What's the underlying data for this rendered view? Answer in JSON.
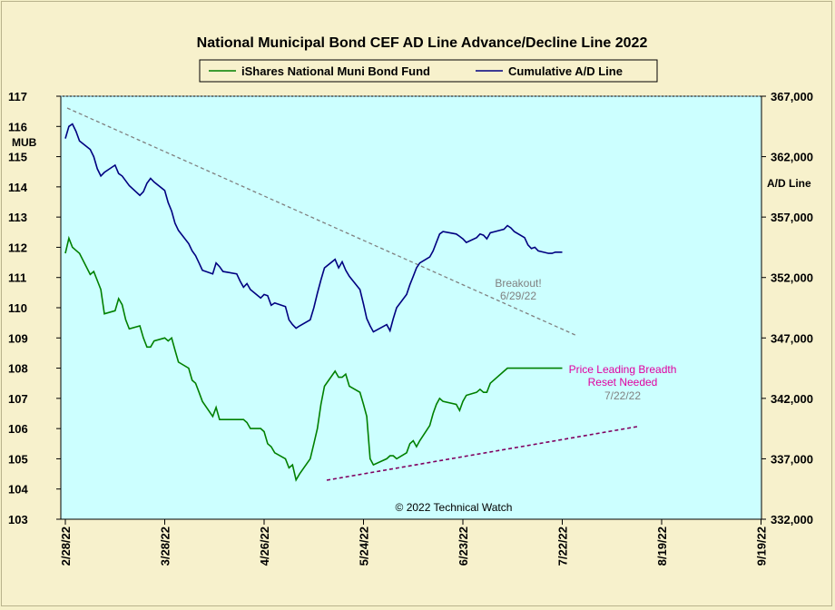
{
  "chart_data": {
    "type": "line",
    "title": "National Municipal Bond CEF AD Line Advance/Decline Line 2022",
    "left_axis": {
      "label": "MUB",
      "ylim": [
        103,
        117
      ],
      "ticks": [
        "103",
        "104",
        "105",
        "106",
        "107",
        "108",
        "109",
        "110",
        "111",
        "112",
        "113",
        "114",
        "115",
        "116",
        "117"
      ]
    },
    "right_axis": {
      "label": "A/D Line",
      "ylim": [
        332000,
        367000
      ],
      "ticks": [
        "332,000",
        "337,000",
        "342,000",
        "347,000",
        "352,000",
        "357,000",
        "362,000",
        "367,000"
      ]
    },
    "x_axis": {
      "ticks": [
        "2/28/22",
        "3/28/22",
        "4/26/22",
        "5/24/22",
        "6/23/22",
        "7/22/22",
        "8/19/22",
        "9/19/22"
      ]
    },
    "legend": {
      "placement": "top-center"
    },
    "grid": false,
    "colors": {
      "plot_bg": "#ccffff",
      "price": "#008000",
      "ad": "#000080",
      "trend": "#808080",
      "support": "#800060",
      "annotation_grey": "#808080",
      "annotation_pink": "#e000a0"
    },
    "series": [
      {
        "name": "iShares National Muni Bond Fund",
        "axis": "left",
        "x": [
          "2/28/22",
          "3/1/22",
          "3/2/22",
          "3/3/22",
          "3/4/22",
          "3/7/22",
          "3/8/22",
          "3/9/22",
          "3/10/22",
          "3/11/22",
          "3/14/22",
          "3/15/22",
          "3/16/22",
          "3/17/22",
          "3/18/22",
          "3/21/22",
          "3/22/22",
          "3/23/22",
          "3/24/22",
          "3/25/22",
          "3/28/22",
          "3/29/22",
          "3/30/22",
          "3/31/22",
          "4/1/22",
          "4/4/22",
          "4/5/22",
          "4/6/22",
          "4/7/22",
          "4/8/22",
          "4/11/22",
          "4/12/22",
          "4/13/22",
          "4/14/22",
          "4/18/22",
          "4/19/22",
          "4/20/22",
          "4/21/22",
          "4/22/22",
          "4/25/22",
          "4/26/22",
          "4/27/22",
          "4/28/22",
          "4/29/22",
          "5/2/22",
          "5/3/22",
          "5/4/22",
          "5/5/22",
          "5/6/22",
          "5/9/22",
          "5/10/22",
          "5/11/22",
          "5/12/22",
          "5/13/22",
          "5/16/22",
          "5/17/22",
          "5/18/22",
          "5/19/22",
          "5/20/22",
          "5/23/22",
          "5/24/22",
          "5/25/22",
          "5/26/22",
          "5/27/22",
          "5/31/22",
          "6/1/22",
          "6/2/22",
          "6/3/22",
          "6/6/22",
          "6/7/22",
          "6/8/22",
          "6/9/22",
          "6/10/22",
          "6/13/22",
          "6/14/22",
          "6/15/22",
          "6/16/22",
          "6/17/22",
          "6/21/22",
          "6/22/22",
          "6/23/22",
          "6/24/22",
          "6/27/22",
          "6/28/22",
          "6/29/22",
          "6/30/22",
          "7/1/22",
          "7/5/22",
          "7/6/22",
          "7/7/22",
          "7/8/22",
          "7/11/22",
          "7/12/22",
          "7/13/22",
          "7/14/22",
          "7/15/22",
          "7/18/22",
          "7/19/22",
          "7/20/22",
          "7/21/22",
          "7/22/22"
        ],
        "values": [
          111.8,
          112.3,
          112.0,
          111.9,
          111.8,
          111.1,
          111.2,
          110.9,
          110.6,
          109.8,
          109.9,
          110.3,
          110.1,
          109.6,
          109.3,
          109.4,
          109.0,
          108.7,
          108.7,
          108.9,
          109.0,
          108.9,
          109.0,
          108.6,
          108.2,
          108.0,
          107.6,
          107.5,
          107.2,
          106.9,
          106.4,
          106.7,
          106.3,
          106.3,
          106.3,
          106.3,
          106.3,
          106.2,
          106.0,
          106.0,
          105.9,
          105.5,
          105.4,
          105.2,
          105.0,
          104.7,
          104.8,
          104.3,
          104.5,
          105.0,
          105.5,
          106.0,
          106.8,
          107.4,
          107.9,
          107.7,
          107.7,
          107.8,
          107.4,
          107.2,
          106.8,
          106.4,
          105.0,
          104.8,
          105.0,
          105.1,
          105.1,
          105.0,
          105.2,
          105.5,
          105.6,
          105.4,
          105.6,
          106.1,
          106.5,
          106.8,
          107.0,
          106.9,
          106.8,
          106.6,
          106.9,
          107.1,
          107.2,
          107.3,
          107.2,
          107.2,
          107.5,
          107.9,
          108.0,
          108.0,
          108.0,
          108.0,
          108.0,
          108.0,
          108.0,
          108.0,
          108.0,
          108.0,
          108.0,
          108.0,
          108.0
        ]
      },
      {
        "name": "Cumulative A/D Line",
        "axis": "right",
        "x": [
          "2/28/22",
          "3/1/22",
          "3/2/22",
          "3/3/22",
          "3/4/22",
          "3/7/22",
          "3/8/22",
          "3/9/22",
          "3/10/22",
          "3/11/22",
          "3/14/22",
          "3/15/22",
          "3/16/22",
          "3/17/22",
          "3/18/22",
          "3/21/22",
          "3/22/22",
          "3/23/22",
          "3/24/22",
          "3/25/22",
          "3/28/22",
          "3/29/22",
          "3/30/22",
          "3/31/22",
          "4/1/22",
          "4/4/22",
          "4/5/22",
          "4/6/22",
          "4/7/22",
          "4/8/22",
          "4/11/22",
          "4/12/22",
          "4/13/22",
          "4/14/22",
          "4/18/22",
          "4/19/22",
          "4/20/22",
          "4/21/22",
          "4/22/22",
          "4/25/22",
          "4/26/22",
          "4/27/22",
          "4/28/22",
          "4/29/22",
          "5/2/22",
          "5/3/22",
          "5/4/22",
          "5/5/22",
          "5/6/22",
          "5/9/22",
          "5/10/22",
          "5/11/22",
          "5/12/22",
          "5/13/22",
          "5/16/22",
          "5/17/22",
          "5/18/22",
          "5/19/22",
          "5/20/22",
          "5/23/22",
          "5/24/22",
          "5/25/22",
          "5/26/22",
          "5/27/22",
          "5/31/22",
          "6/1/22",
          "6/2/22",
          "6/3/22",
          "6/6/22",
          "6/7/22",
          "6/8/22",
          "6/9/22",
          "6/10/22",
          "6/13/22",
          "6/14/22",
          "6/15/22",
          "6/16/22",
          "6/17/22",
          "6/21/22",
          "6/22/22",
          "6/23/22",
          "6/24/22",
          "6/27/22",
          "6/28/22",
          "6/29/22",
          "6/30/22",
          "7/1/22",
          "7/5/22",
          "7/6/22",
          "7/7/22",
          "7/8/22",
          "7/11/22",
          "7/12/22",
          "7/13/22",
          "7/14/22",
          "7/15/22",
          "7/18/22",
          "7/19/22",
          "7/20/22",
          "7/21/22",
          "7/22/22"
        ],
        "values": [
          363.5,
          364.5,
          364.7,
          364.1,
          363.3,
          362.6,
          362.0,
          361.0,
          360.4,
          360.7,
          361.3,
          360.6,
          360.4,
          360.0,
          359.6,
          358.8,
          359.1,
          359.8,
          360.2,
          359.9,
          359.2,
          358.2,
          357.5,
          356.5,
          355.9,
          354.8,
          354.2,
          353.8,
          353.2,
          352.6,
          352.3,
          353.2,
          352.9,
          352.5,
          352.3,
          351.7,
          351.2,
          351.5,
          351.0,
          350.3,
          350.6,
          350.5,
          349.7,
          349.9,
          349.6,
          348.5,
          348.1,
          347.8,
          348.0,
          348.5,
          349.5,
          350.7,
          351.8,
          352.8,
          353.5,
          352.8,
          353.3,
          352.6,
          352.1,
          351.0,
          349.8,
          348.6,
          348.0,
          347.5,
          348.1,
          347.6,
          348.6,
          349.5,
          350.6,
          351.4,
          352.1,
          352.8,
          353.2,
          353.7,
          354.2,
          354.9,
          355.6,
          355.8,
          355.6,
          355.4,
          355.2,
          354.9,
          355.3,
          355.6,
          355.5,
          355.2,
          355.7,
          356.0,
          356.3,
          356.1,
          355.8,
          355.3,
          354.7,
          354.4,
          354.5,
          354.2,
          354.0,
          354.0,
          354.1,
          354.1,
          354.1
        ]
      }
    ],
    "annotations": {
      "breakout_title": "Breakout!",
      "breakout_date": "6/29/22",
      "price_title": "Price Leading Breadth",
      "price_sub": "Reset Needed",
      "price_date": "7/22/22",
      "copyright": "© 2022 Technical Watch"
    }
  }
}
